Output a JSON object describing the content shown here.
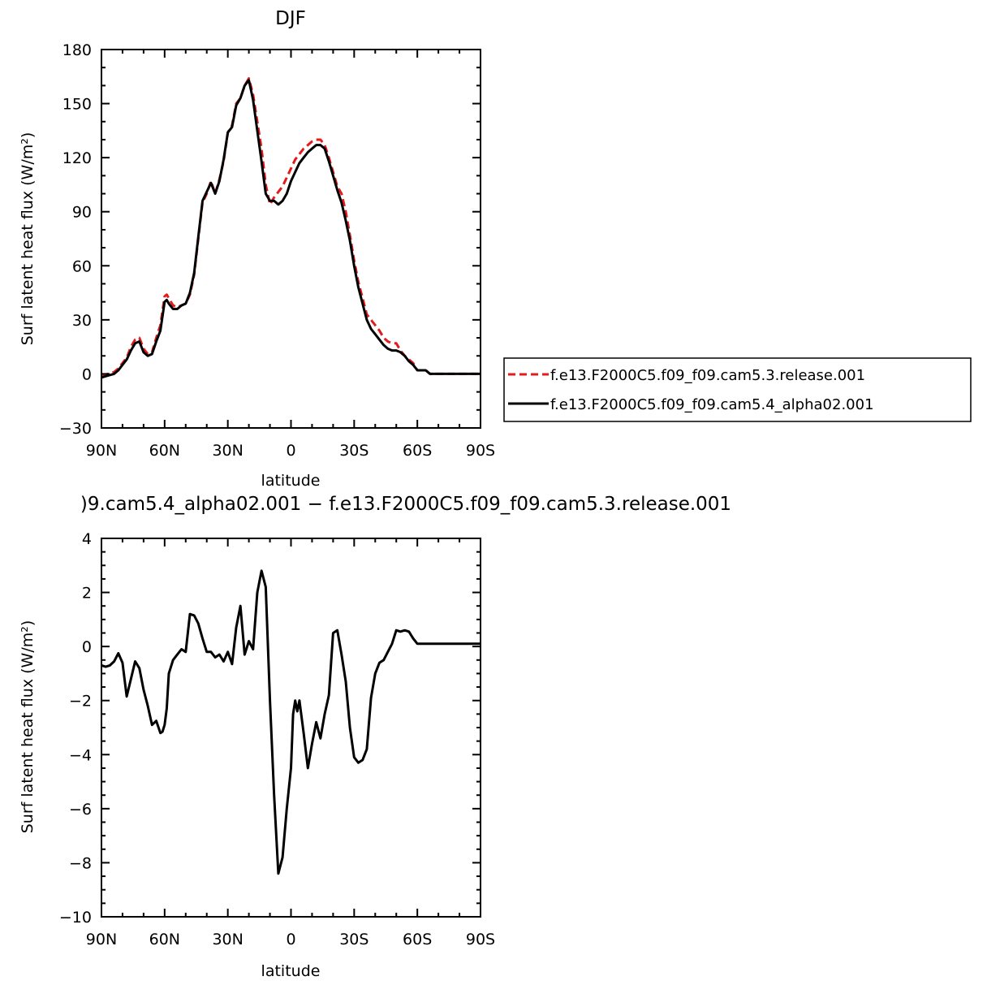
{
  "chart_data": [
    {
      "type": "line",
      "title": "DJF",
      "xlabel": "latitude",
      "ylabel": "Surf latent heat flux (W/m²)",
      "xlim": [
        90,
        -90
      ],
      "ylim": [
        -30,
        180
      ],
      "xticks": [
        90,
        60,
        30,
        0,
        -30,
        -60,
        -90
      ],
      "xtick_labels": [
        "90N",
        "60N",
        "30N",
        "0",
        "30S",
        "60S",
        "90S"
      ],
      "yticks": [
        -30,
        0,
        30,
        60,
        90,
        120,
        150,
        180
      ],
      "ytick_labels": [
        "−30",
        "0",
        "30",
        "60",
        "90",
        "120",
        "150",
        "180"
      ],
      "grid": false,
      "legend_position": "right",
      "series": [
        {
          "name": "f.e13.F2000C5.f09_f09.cam5.3.release.001",
          "color": "#e41a1c",
          "dash": "dashed",
          "x": [
            90,
            87,
            84,
            82,
            80,
            78,
            76,
            74,
            72,
            70,
            68,
            66,
            64,
            62,
            60,
            59,
            58,
            56,
            54,
            52,
            50,
            48,
            46,
            44,
            42,
            40,
            38,
            36,
            34,
            32,
            30,
            28,
            26,
            24,
            22,
            20,
            18,
            16,
            14,
            12,
            10,
            8,
            6,
            4,
            2,
            0,
            -2,
            -4,
            -6,
            -8,
            -10,
            -12,
            -14,
            -16,
            -18,
            -20,
            -22,
            -24,
            -26,
            -28,
            -30,
            -32,
            -34,
            -36,
            -38,
            -40,
            -42,
            -44,
            -46,
            -48,
            -50,
            -52,
            -54,
            -56,
            -58,
            -60,
            -62,
            -64,
            -66,
            -68,
            -70,
            -72,
            -74,
            -76,
            -78,
            -80,
            -82,
            -84,
            -86,
            -88,
            -90
          ],
          "y": [
            -1,
            0,
            1,
            3,
            6,
            9,
            15,
            19,
            20,
            14,
            11,
            12,
            20,
            27,
            43,
            44,
            42,
            38,
            37,
            38,
            39,
            44,
            55,
            75,
            95,
            100,
            107,
            100,
            108,
            118,
            134,
            138,
            150,
            153,
            160,
            164,
            155,
            140,
            125,
            105,
            94,
            98,
            101,
            104,
            109,
            114,
            119,
            122,
            125,
            127,
            129,
            130,
            130,
            127,
            120,
            112,
            104,
            100,
            90,
            77,
            63,
            51,
            42,
            33,
            30,
            27,
            24,
            20,
            18,
            17,
            17,
            13,
            10,
            8,
            6,
            2,
            2,
            2,
            0,
            0,
            0,
            0,
            0,
            0,
            0,
            0,
            0,
            0,
            0,
            0,
            0
          ],
          "_note": "values approximate"
        },
        {
          "name": "f.e13.F2000C5.f09_f09.cam5.4_alpha02.001",
          "color": "#000000",
          "dash": "solid",
          "x": [
            90,
            87,
            84,
            82,
            80,
            78,
            76,
            74,
            72,
            70,
            68,
            66,
            64,
            62,
            60,
            59,
            58,
            56,
            54,
            52,
            50,
            48,
            46,
            44,
            42,
            40,
            38,
            36,
            34,
            32,
            30,
            28,
            26,
            24,
            22,
            20,
            18,
            16,
            14,
            12,
            10,
            8,
            6,
            4,
            2,
            0,
            -2,
            -4,
            -6,
            -8,
            -10,
            -12,
            -14,
            -16,
            -18,
            -20,
            -22,
            -24,
            -26,
            -28,
            -30,
            -32,
            -34,
            -36,
            -38,
            -40,
            -42,
            -44,
            -46,
            -48,
            -50,
            -52,
            -54,
            -56,
            -58,
            -60,
            -62,
            -64,
            -66,
            -68,
            -70,
            -72,
            -74,
            -76,
            -78,
            -80,
            -82,
            -84,
            -86,
            -88,
            -90
          ],
          "y": [
            -2,
            -1,
            0,
            2,
            5,
            8,
            13,
            17,
            18,
            12,
            10,
            11,
            18,
            24,
            40,
            41,
            39,
            36,
            36,
            38,
            39,
            45,
            56,
            76,
            96,
            101,
            106,
            100,
            107,
            119,
            134,
            137,
            149,
            153,
            160,
            163,
            152,
            135,
            118,
            100,
            96,
            96,
            94,
            96,
            100,
            107,
            112,
            117,
            120,
            123,
            125,
            127,
            127,
            125,
            118,
            110,
            102,
            95,
            85,
            74,
            60,
            48,
            39,
            30,
            25,
            22,
            19,
            16,
            14,
            13,
            13,
            12,
            10,
            7,
            5,
            2,
            2,
            2,
            0,
            0,
            0,
            0,
            0,
            0,
            0,
            0,
            0,
            0,
            0,
            0,
            0
          ],
          "_note": "values approximate"
        }
      ]
    },
    {
      "type": "line",
      "title": ")9.cam5.4_alpha02.001 − f.e13.F2000C5.f09_f09.cam5.3.release.001",
      "xlabel": "latitude",
      "ylabel": "Surf latent heat flux (W/m²)",
      "xlim": [
        90,
        -90
      ],
      "ylim": [
        -10,
        4
      ],
      "xticks": [
        90,
        60,
        30,
        0,
        -30,
        -60,
        -90
      ],
      "xtick_labels": [
        "90N",
        "60N",
        "30N",
        "0",
        "30S",
        "60S",
        "90S"
      ],
      "yticks": [
        -10,
        -8,
        -6,
        -4,
        -2,
        0,
        2,
        4
      ],
      "ytick_labels": [
        "−10",
        "−8",
        "−6",
        "−4",
        "−2",
        "0",
        "2",
        "4"
      ],
      "grid": false,
      "series": [
        {
          "color": "#000000",
          "dash": "solid",
          "x": [
            90,
            88,
            86,
            84,
            82,
            80,
            78,
            76,
            74,
            72,
            70,
            68,
            66,
            64,
            62,
            61,
            60,
            59,
            58,
            56,
            54,
            52,
            50,
            48,
            46,
            44,
            42,
            40,
            38,
            36,
            34,
            32,
            30,
            28,
            26,
            24,
            22,
            20,
            18,
            16,
            14,
            12,
            10,
            8,
            6,
            4,
            2,
            0,
            -1,
            -2,
            -3,
            -4,
            -6,
            -8,
            -10,
            -12,
            -14,
            -16,
            -18,
            -20,
            -22,
            -24,
            -26,
            -28,
            -30,
            -32,
            -34,
            -36,
            -38,
            -40,
            -42,
            -44,
            -46,
            -48,
            -50,
            -52,
            -54,
            -56,
            -58,
            -60,
            -62,
            -64,
            -66,
            -68,
            -70,
            -72,
            -74,
            -76,
            -78,
            -80,
            -82,
            -84,
            -86,
            -88,
            -90
          ],
          "y": [
            -0.7,
            -0.75,
            -0.7,
            -0.55,
            -0.25,
            -0.6,
            -1.85,
            -1.2,
            -0.55,
            -0.8,
            -1.6,
            -2.2,
            -2.9,
            -2.75,
            -3.2,
            -3.15,
            -2.9,
            -2.3,
            -1.0,
            -0.5,
            -0.3,
            -0.1,
            -0.2,
            1.2,
            1.15,
            0.85,
            0.3,
            -0.2,
            -0.2,
            -0.4,
            -0.3,
            -0.55,
            -0.2,
            -0.65,
            0.7,
            1.5,
            -0.3,
            0.2,
            -0.1,
            2.0,
            2.8,
            2.2,
            -2.0,
            -5.5,
            -8.4,
            -7.8,
            -6.0,
            -4.5,
            -2.5,
            -2.0,
            -2.4,
            -2.0,
            -3.2,
            -4.5,
            -3.6,
            -2.8,
            -3.4,
            -2.5,
            -1.8,
            0.5,
            0.6,
            -0.3,
            -1.3,
            -3.0,
            -4.1,
            -4.3,
            -4.2,
            -3.8,
            -1.9,
            -1.0,
            -0.6,
            -0.5,
            -0.2,
            0.1,
            0.6,
            0.55,
            0.6,
            0.55,
            0.3,
            0.1,
            0.1,
            0.1,
            0.1,
            0.1,
            0.1,
            0.1,
            0.1,
            0.1,
            0.1,
            0.1,
            0.1,
            0.1,
            0.1,
            0.1,
            0.1
          ],
          "_note": "values approximate"
        }
      ]
    }
  ]
}
